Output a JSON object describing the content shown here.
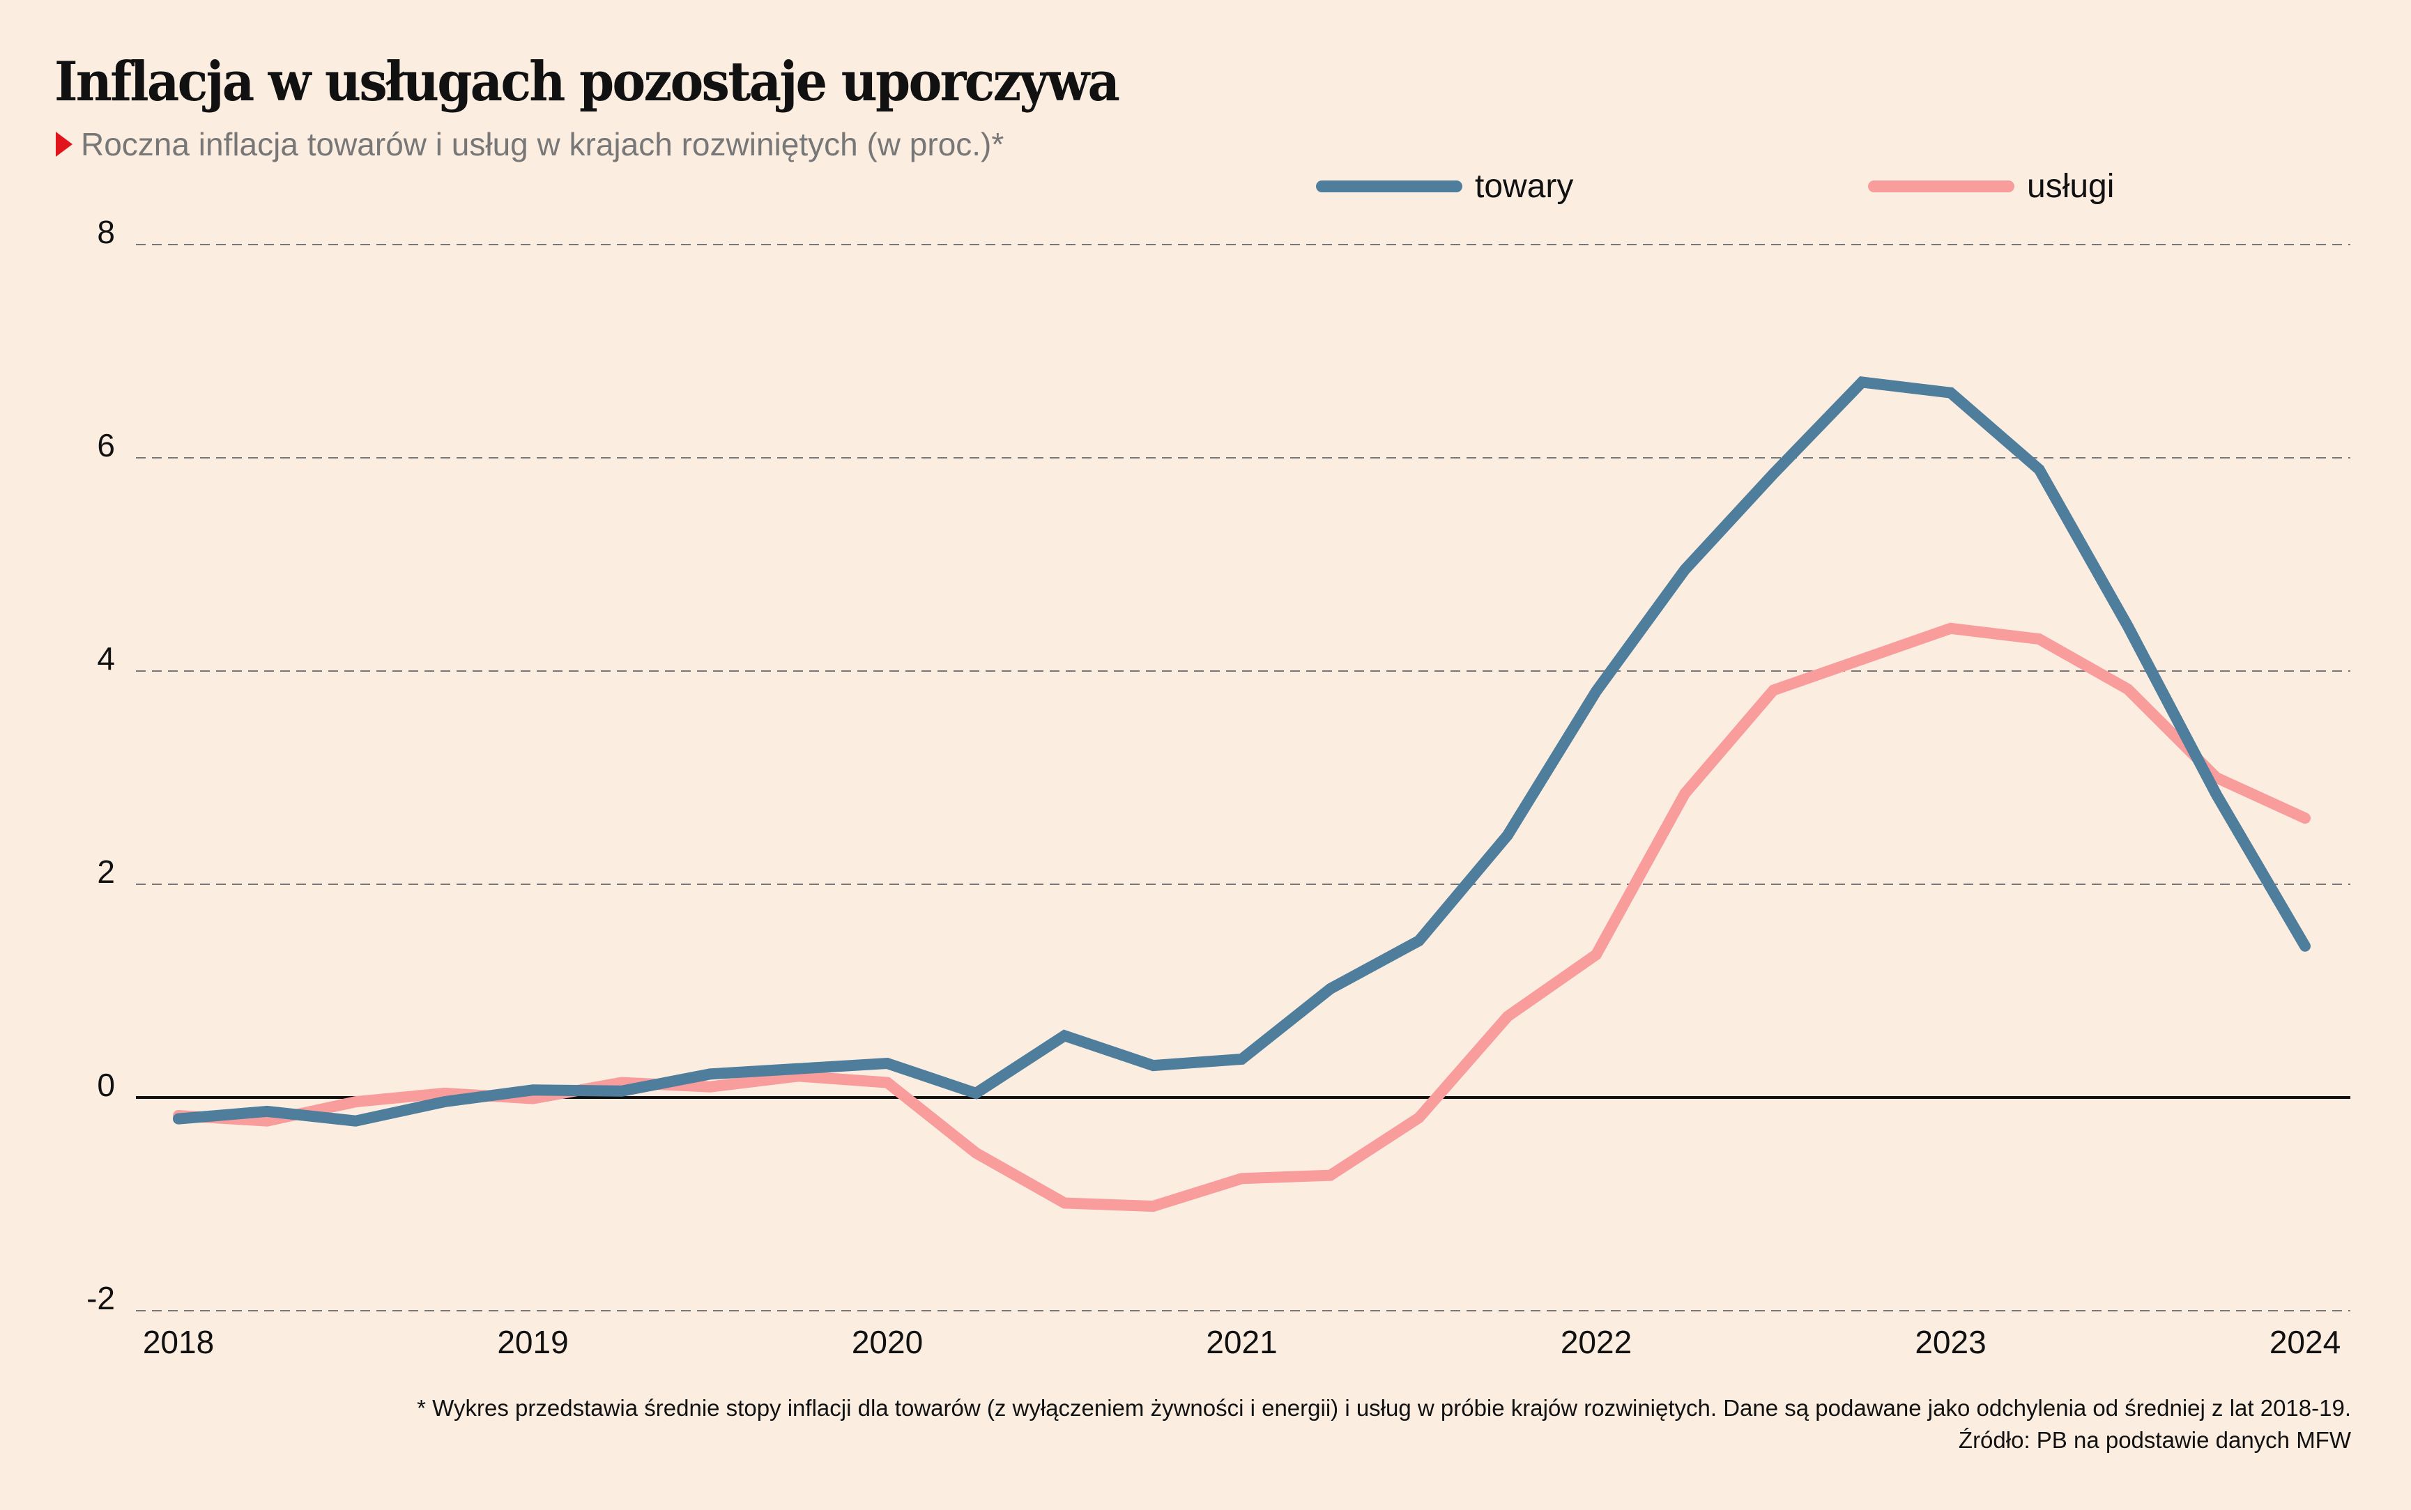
{
  "header": {
    "title": "Inflacja w usługach pozostaje uporczywa",
    "subtitle": "Roczna inflacja towarów i usług w krajach rozwiniętych (w proc.)*"
  },
  "colors": {
    "towary": "#4f7d9c",
    "uslugi": "#f99c9c",
    "accent": "#e1141c",
    "background": "#fbeee1"
  },
  "footnote": {
    "note": "* Wykres przedstawia średnie stopy inflacji dla towarów (z wyłączeniem żywności i energii) i usług w próbie krajów rozwiniętych. Dane są podawane jako odchylenia od średniej z lat 2018-19.",
    "source": "Źródło: PB na podstawie danych MFW"
  },
  "chart_data": {
    "type": "line",
    "title": "Inflacja w usługach pozostaje uporczywa",
    "subtitle": "Roczna inflacja towarów i usług w krajach rozwiniętych (w proc.)*",
    "xlabel": "",
    "ylabel": "",
    "x": [
      2018.0,
      2018.25,
      2018.5,
      2018.75,
      2019.0,
      2019.25,
      2019.5,
      2019.75,
      2020.0,
      2020.25,
      2020.5,
      2020.75,
      2021.0,
      2021.25,
      2021.5,
      2021.75,
      2022.0,
      2022.25,
      2022.5,
      2022.75,
      2023.0,
      2023.25,
      2023.5,
      2023.75,
      2024.0
    ],
    "xlim": [
      2018,
      2024
    ],
    "ylim": [
      -2,
      8
    ],
    "x_ticks": [
      "2018",
      "2019",
      "2020",
      "2021",
      "2022",
      "2023",
      "2024"
    ],
    "y_ticks": [
      "8",
      "6",
      "4",
      "2",
      "0",
      "-2"
    ],
    "y_tick_values": [
      8,
      6,
      4,
      2,
      0,
      -2
    ],
    "grid": true,
    "legend_position": "top-right",
    "series": [
      {
        "name": "towary",
        "color": "#4f7d9c",
        "values": [
          -0.2,
          -0.13,
          -0.22,
          -0.04,
          0.07,
          0.06,
          0.22,
          0.27,
          0.32,
          0.04,
          0.58,
          0.3,
          0.36,
          1.02,
          1.47,
          2.46,
          3.81,
          4.95,
          5.85,
          6.71,
          6.61,
          5.89,
          4.42,
          2.84,
          1.42
        ]
      },
      {
        "name": "usługi",
        "color": "#f99c9c",
        "values": [
          -0.17,
          -0.22,
          -0.04,
          0.04,
          -0.01,
          0.14,
          0.1,
          0.2,
          0.14,
          -0.52,
          -0.99,
          -1.02,
          -0.76,
          -0.73,
          -0.19,
          0.76,
          1.34,
          2.85,
          3.82,
          4.11,
          4.4,
          4.3,
          3.83,
          3.0,
          2.62
        ]
      }
    ]
  }
}
